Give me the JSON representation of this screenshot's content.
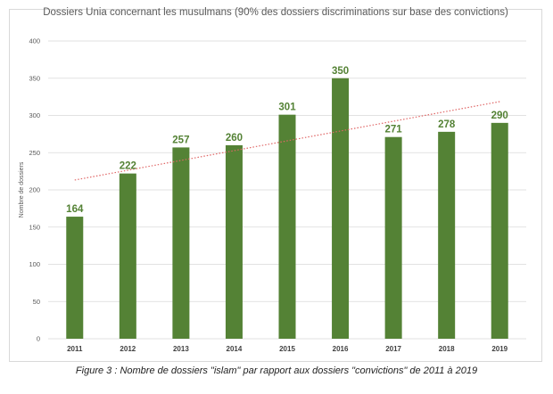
{
  "chart_data": {
    "type": "bar",
    "title": "Dossiers Unia concernant les musulmans (90% des dossiers discriminations sur base des convictions)",
    "ylabel": "Nombre de dossiers",
    "xlabel": "",
    "categories": [
      "2011",
      "2012",
      "2013",
      "2014",
      "2015",
      "2016",
      "2017",
      "2018",
      "2019"
    ],
    "values": [
      164,
      222,
      257,
      260,
      301,
      350,
      271,
      278,
      290
    ],
    "ylim": [
      0,
      400
    ],
    "yticks": [
      "0",
      "50",
      "100",
      "150",
      "200",
      "250",
      "300",
      "350",
      "400"
    ],
    "data_labels": [
      "164",
      "222",
      "257",
      "260",
      "301",
      "350",
      "271",
      "278",
      "290"
    ],
    "trendline": {
      "type": "linear",
      "style": "dotted",
      "color": "#e06666"
    },
    "grid": true,
    "legend": "none",
    "colors": {
      "bar": "#548235",
      "label": "#548235",
      "grid": "#d9d9d9"
    }
  },
  "caption": "Figure 3 : Nombre de dossiers \"islam\" par rapport aux dossiers \"convictions\" de 2011 à 2019"
}
